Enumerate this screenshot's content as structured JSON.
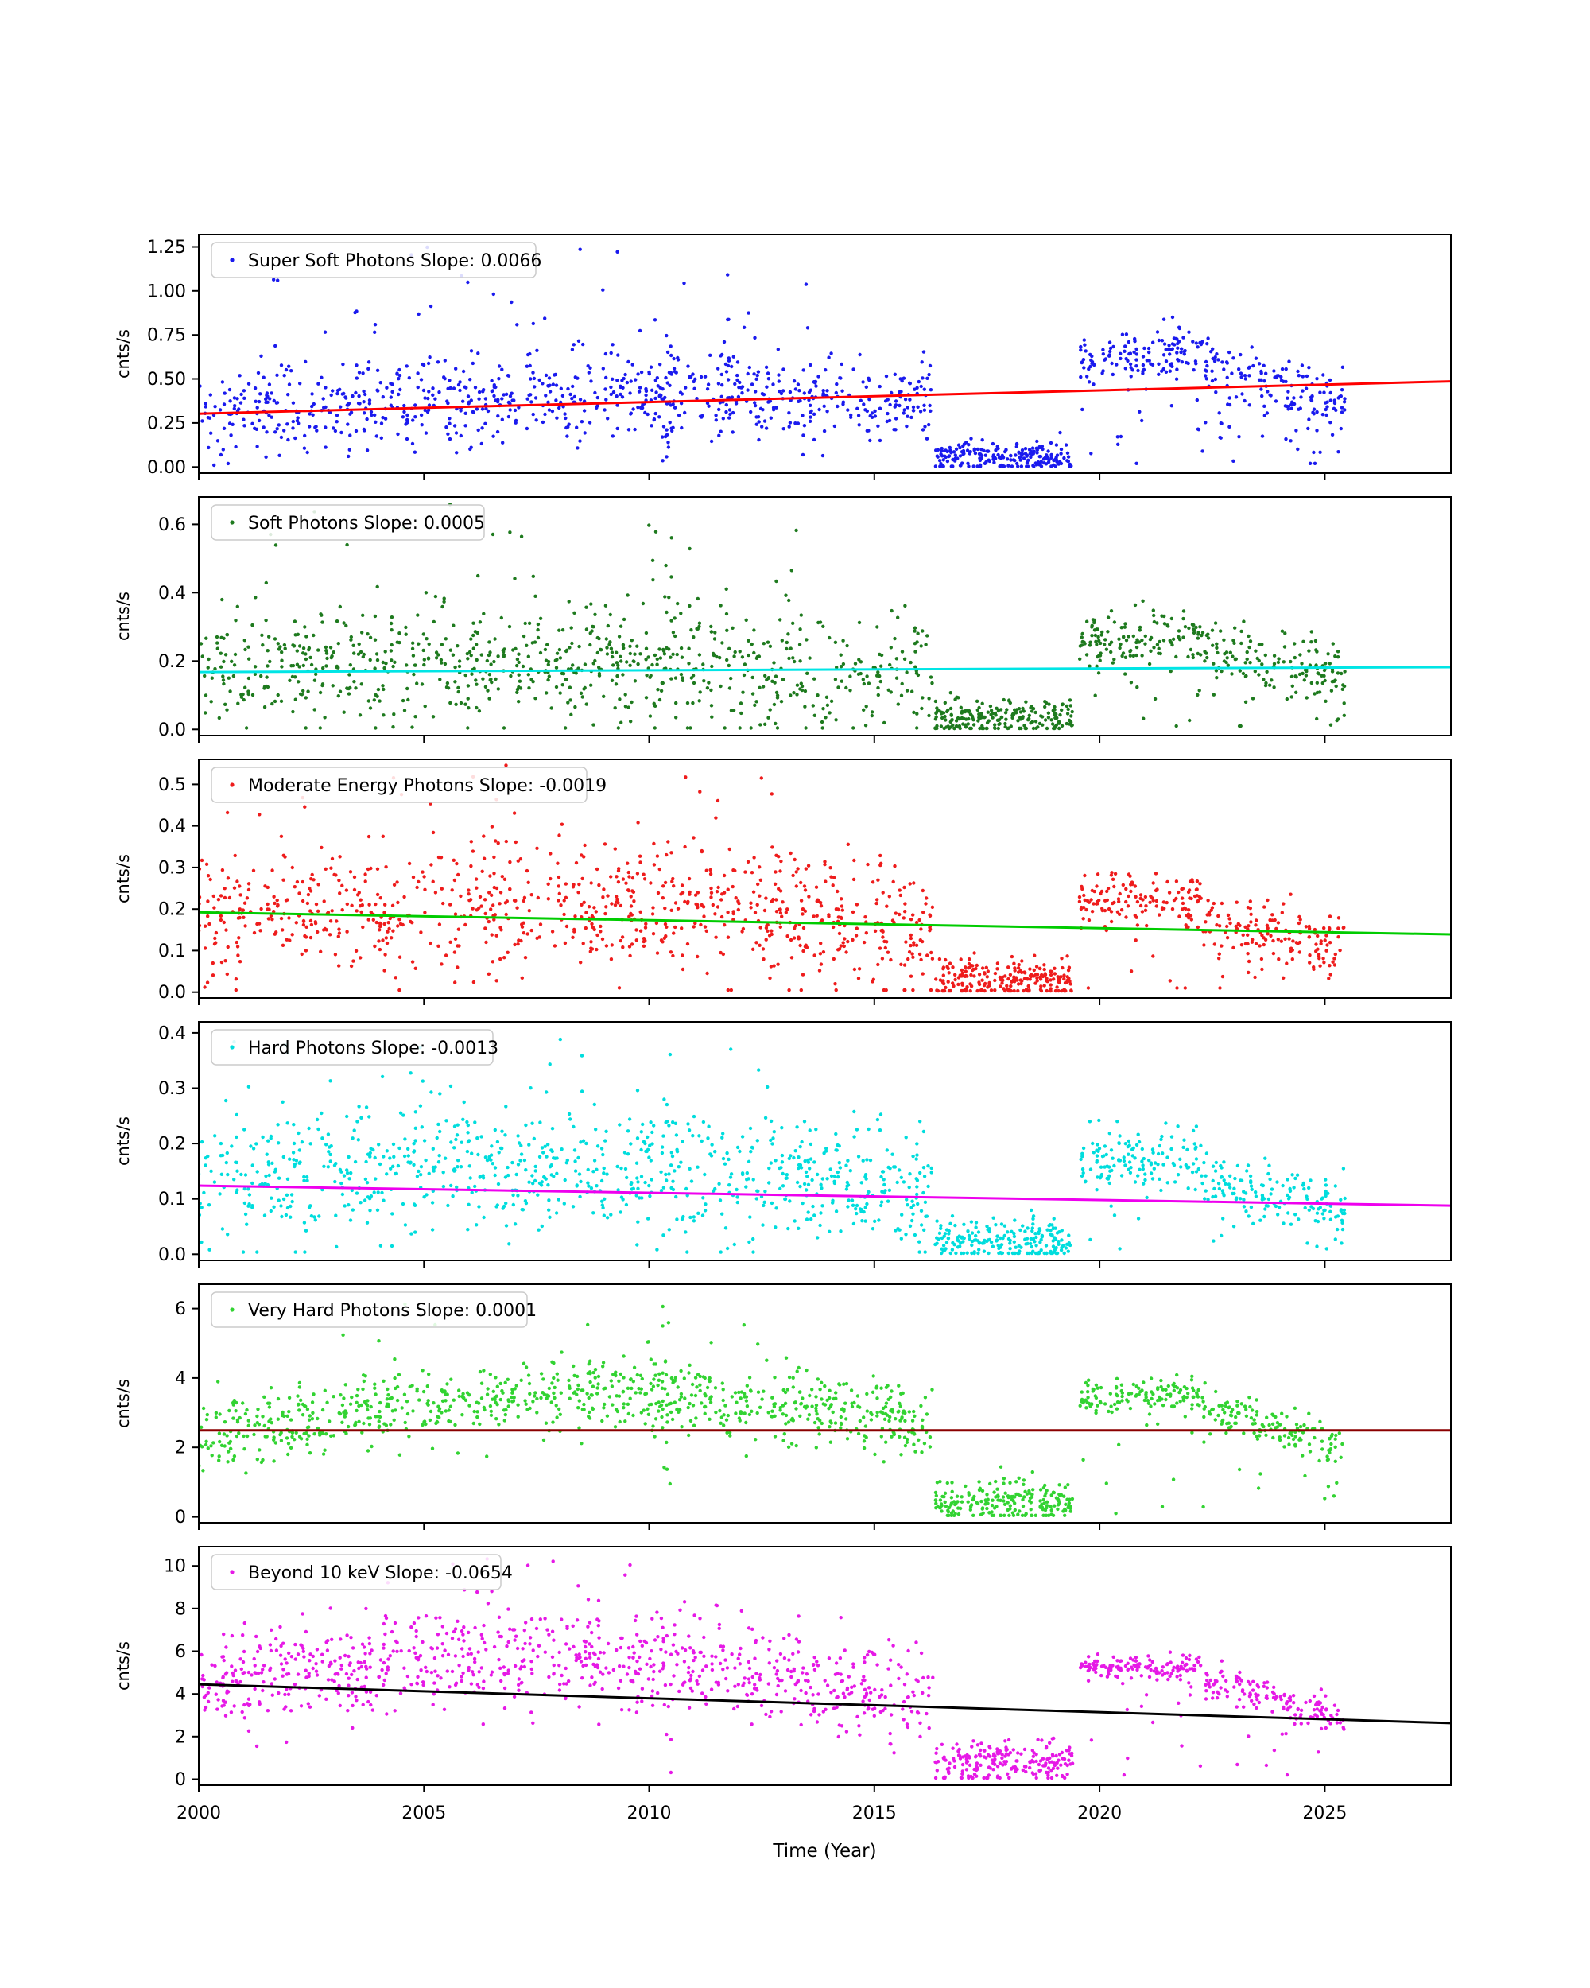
{
  "figure": {
    "background": "#ffffff",
    "xlabel": "Time (Year)",
    "ylabel": "cnts/s"
  },
  "chart_data": {
    "type": "scatter",
    "title": "",
    "xlabel": "Time (Year)",
    "ylabel": "cnts/s",
    "x_range": [
      2000,
      2027.8
    ],
    "x_ticks": [
      {
        "v": 2000,
        "label": "2000"
      },
      {
        "v": 2005,
        "label": "2005"
      },
      {
        "v": 2010,
        "label": "2010"
      },
      {
        "v": 2015,
        "label": "2015"
      },
      {
        "v": 2020,
        "label": "2020"
      },
      {
        "v": 2025,
        "label": "2025"
      }
    ],
    "panels": [
      {
        "name": "super-soft-photons",
        "legend_label": "Super Soft Photons Slope: 0.0066",
        "slope": 0.0066,
        "dot_color": "#1a1aee",
        "line_color": "#ff0000",
        "ylim": [
          -0.035,
          1.32
        ],
        "yticks": [
          {
            "v": 0.0,
            "label": "0.00"
          },
          {
            "v": 0.25,
            "label": "0.25"
          },
          {
            "v": 0.5,
            "label": "0.50"
          },
          {
            "v": 0.75,
            "label": "0.75"
          },
          {
            "v": 1.0,
            "label": "1.00"
          },
          {
            "v": 1.25,
            "label": "1.25"
          }
        ],
        "trend": {
          "x0": 2000,
          "y0": 0.303,
          "x1": 2027.8,
          "y1": 0.486
        },
        "seed": 101,
        "segments": [
          {
            "x0": 2000,
            "x1": 2016.3,
            "n": 800,
            "m0": 0.3,
            "m1": 0.38,
            "amp": 0.07,
            "sd": 0.13,
            "lo": 0.01,
            "hi": 1.28
          },
          {
            "x0": 2000.5,
            "x1": 2014,
            "n": 26,
            "uniform": true,
            "lo": 0.68,
            "hi": 1.26
          },
          {
            "x0": 2010.3,
            "x1": 2010.5,
            "n": 16,
            "uniform": true,
            "lo": 0.02,
            "hi": 0.9
          },
          {
            "x0": 2011.7,
            "x1": 2011.9,
            "n": 12,
            "uniform": true,
            "lo": 0.05,
            "hi": 1.25
          },
          {
            "x0": 2016.35,
            "x1": 2019.4,
            "n": 210,
            "m0": 0.05,
            "m1": 0.05,
            "amp": 0,
            "sd": 0.045,
            "lo": 0.004,
            "hi": 0.32
          },
          {
            "x0": 2019.55,
            "x1": 2022.3,
            "n": 130,
            "m0": 0.62,
            "m1": 0.66,
            "amp": 0,
            "sd": 0.07,
            "lo": 0.32,
            "hi": 0.92
          },
          {
            "x0": 2022.3,
            "x1": 2025.45,
            "n": 140,
            "m0": 0.56,
            "m1": 0.36,
            "amp": 0,
            "sd": 0.09,
            "lo": 0.12,
            "hi": 1.0
          },
          {
            "x0": 2019.6,
            "x1": 2025.4,
            "n": 40,
            "m0": 0.22,
            "m1": 0.22,
            "amp": 0,
            "sd": 0.16,
            "lo": 0.02,
            "hi": 1.22
          }
        ]
      },
      {
        "name": "soft-photons",
        "legend_label": "Soft Photons Slope: 0.0005",
        "slope": 0.0005,
        "dot_color": "#1e7a1e",
        "line_color": "#00e5e5",
        "ylim": [
          -0.018,
          0.68
        ],
        "yticks": [
          {
            "v": 0.0,
            "label": "0.0"
          },
          {
            "v": 0.2,
            "label": "0.2"
          },
          {
            "v": 0.4,
            "label": "0.4"
          },
          {
            "v": 0.6,
            "label": "0.6"
          }
        ],
        "trend": {
          "x0": 2000,
          "y0": 0.168,
          "x1": 2027.8,
          "y1": 0.182
        },
        "seed": 202,
        "segments": [
          {
            "x0": 2000,
            "x1": 2016.3,
            "n": 800,
            "m0": 0.17,
            "m1": 0.17,
            "amp": 0.03,
            "sd": 0.09,
            "lo": 0.004,
            "hi": 0.66
          },
          {
            "x0": 2001,
            "x1": 2013.5,
            "n": 18,
            "uniform": true,
            "lo": 0.42,
            "hi": 0.66
          },
          {
            "x0": 2010.3,
            "x1": 2010.5,
            "n": 10,
            "uniform": true,
            "lo": 0.02,
            "hi": 0.5
          },
          {
            "x0": 2016.35,
            "x1": 2019.4,
            "n": 210,
            "m0": 0.03,
            "m1": 0.03,
            "amp": 0,
            "sd": 0.027,
            "lo": 0.003,
            "hi": 0.16
          },
          {
            "x0": 2019.55,
            "x1": 2022.3,
            "n": 130,
            "m0": 0.26,
            "m1": 0.28,
            "amp": 0,
            "sd": 0.04,
            "lo": 0.12,
            "hi": 0.46
          },
          {
            "x0": 2022.3,
            "x1": 2025.45,
            "n": 140,
            "m0": 0.24,
            "m1": 0.15,
            "amp": 0,
            "sd": 0.05,
            "lo": 0.03,
            "hi": 0.44
          },
          {
            "x0": 2019.6,
            "x1": 2025.4,
            "n": 30,
            "m0": 0.1,
            "m1": 0.1,
            "amp": 0,
            "sd": 0.09,
            "lo": 0.01,
            "hi": 0.44
          }
        ]
      },
      {
        "name": "moderate-energy-photons",
        "legend_label": "Moderate Energy Photons Slope: -0.0019",
        "slope": -0.0019,
        "dot_color": "#ee1c1c",
        "line_color": "#00cc00",
        "ylim": [
          -0.014,
          0.56
        ],
        "yticks": [
          {
            "v": 0.0,
            "label": "0.0"
          },
          {
            "v": 0.1,
            "label": "0.1"
          },
          {
            "v": 0.2,
            "label": "0.2"
          },
          {
            "v": 0.3,
            "label": "0.3"
          },
          {
            "v": 0.4,
            "label": "0.4"
          },
          {
            "v": 0.5,
            "label": "0.5"
          }
        ],
        "trend": {
          "x0": 2000,
          "y0": 0.192,
          "x1": 2027.8,
          "y1": 0.139
        },
        "seed": 303,
        "segments": [
          {
            "x0": 2000,
            "x1": 2016.3,
            "n": 850,
            "m0": 0.18,
            "m1": 0.15,
            "amp": 0.05,
            "sd": 0.08,
            "lo": 0.005,
            "hi": 0.55
          },
          {
            "x0": 2000.3,
            "x1": 2016,
            "n": 14,
            "uniform": true,
            "lo": 0.4,
            "hi": 0.55
          },
          {
            "x0": 2010.3,
            "x1": 2010.5,
            "n": 8,
            "uniform": true,
            "lo": 0.02,
            "hi": 0.45
          },
          {
            "x0": 2016.35,
            "x1": 2019.4,
            "n": 220,
            "m0": 0.03,
            "m1": 0.03,
            "amp": 0,
            "sd": 0.025,
            "lo": 0.003,
            "hi": 0.14
          },
          {
            "x0": 2019.55,
            "x1": 2022.3,
            "n": 130,
            "m0": 0.22,
            "m1": 0.22,
            "amp": 0,
            "sd": 0.035,
            "lo": 0.1,
            "hi": 0.33
          },
          {
            "x0": 2022.3,
            "x1": 2025.45,
            "n": 140,
            "m0": 0.18,
            "m1": 0.1,
            "amp": 0,
            "sd": 0.035,
            "lo": 0.03,
            "hi": 0.3
          },
          {
            "x0": 2019.6,
            "x1": 2025.4,
            "n": 30,
            "m0": 0.1,
            "m1": 0.1,
            "amp": 0,
            "sd": 0.08,
            "lo": 0.01,
            "hi": 0.5
          }
        ]
      },
      {
        "name": "hard-photons",
        "legend_label": "Hard Photons Slope: -0.0013",
        "slope": -0.0013,
        "dot_color": "#00dddd",
        "line_color": "#ee00ee",
        "ylim": [
          -0.011,
          0.42
        ],
        "yticks": [
          {
            "v": 0.0,
            "label": "0.0"
          },
          {
            "v": 0.1,
            "label": "0.1"
          },
          {
            "v": 0.2,
            "label": "0.2"
          },
          {
            "v": 0.3,
            "label": "0.3"
          },
          {
            "v": 0.4,
            "label": "0.4"
          }
        ],
        "trend": {
          "x0": 2000,
          "y0": 0.124,
          "x1": 2027.8,
          "y1": 0.088
        },
        "seed": 404,
        "segments": [
          {
            "x0": 2000,
            "x1": 2016.3,
            "n": 850,
            "m0": 0.125,
            "m1": 0.115,
            "amp": 0.035,
            "sd": 0.06,
            "lo": 0.004,
            "hi": 0.41
          },
          {
            "x0": 2000.3,
            "x1": 2013,
            "n": 10,
            "uniform": true,
            "lo": 0.3,
            "hi": 0.41
          },
          {
            "x0": 2010.3,
            "x1": 2010.5,
            "n": 8,
            "uniform": true,
            "lo": 0.02,
            "hi": 0.38
          },
          {
            "x0": 2016.35,
            "x1": 2019.4,
            "n": 210,
            "m0": 0.02,
            "m1": 0.02,
            "amp": 0,
            "sd": 0.02,
            "lo": 0.002,
            "hi": 0.11
          },
          {
            "x0": 2019.55,
            "x1": 2022.3,
            "n": 130,
            "m0": 0.17,
            "m1": 0.17,
            "amp": 0,
            "sd": 0.028,
            "lo": 0.07,
            "hi": 0.27
          },
          {
            "x0": 2022.3,
            "x1": 2025.45,
            "n": 140,
            "m0": 0.14,
            "m1": 0.075,
            "amp": 0,
            "sd": 0.028,
            "lo": 0.02,
            "hi": 0.22
          },
          {
            "x0": 2019.6,
            "x1": 2025.4,
            "n": 25,
            "m0": 0.07,
            "m1": 0.07,
            "amp": 0,
            "sd": 0.05,
            "lo": 0.01,
            "hi": 0.3
          }
        ]
      },
      {
        "name": "very-hard-photons",
        "legend_label": "Very Hard Photons Slope: 0.0001",
        "slope": 0.0001,
        "dot_color": "#32d332",
        "line_color": "#8b0000",
        "ylim": [
          -0.17,
          6.7
        ],
        "yticks": [
          {
            "v": 0,
            "label": "0"
          },
          {
            "v": 2,
            "label": "2"
          },
          {
            "v": 4,
            "label": "4"
          },
          {
            "v": 6,
            "label": "6"
          }
        ],
        "trend": {
          "x0": 2000,
          "y0": 2.49,
          "x1": 2027.8,
          "y1": 2.493
        },
        "seed": 505,
        "segments": [
          {
            "x0": 2000,
            "x1": 2016.3,
            "n": 850,
            "m0": 2.25,
            "m1": 2.55,
            "amp": 1.15,
            "sd": 0.55,
            "lo": 0.1,
            "hi": 6.45
          },
          {
            "x0": 2002.5,
            "x1": 2012.5,
            "n": 8,
            "uniform": true,
            "lo": 4.9,
            "hi": 6.4
          },
          {
            "x0": 2010.3,
            "x1": 2010.5,
            "n": 10,
            "uniform": true,
            "lo": 0.2,
            "hi": 6.3
          },
          {
            "x0": 2016.35,
            "x1": 2019.4,
            "n": 210,
            "m0": 0.45,
            "m1": 0.45,
            "amp": 0,
            "sd": 0.3,
            "lo": 0.04,
            "hi": 1.7
          },
          {
            "x0": 2019.55,
            "x1": 2022.3,
            "n": 130,
            "m0": 3.45,
            "m1": 3.5,
            "amp": 0,
            "sd": 0.22,
            "lo": 2.6,
            "hi": 4.2
          },
          {
            "x0": 2022.3,
            "x1": 2025.45,
            "n": 140,
            "m0": 3.2,
            "m1": 1.95,
            "amp": 0,
            "sd": 0.28,
            "lo": 1.3,
            "hi": 4.0
          },
          {
            "x0": 2019.6,
            "x1": 2025.4,
            "n": 25,
            "m0": 1.6,
            "m1": 1.6,
            "amp": 0,
            "sd": 1.0,
            "lo": 0.1,
            "hi": 4.6
          }
        ]
      },
      {
        "name": "beyond-10-kev",
        "legend_label": "Beyond 10 keV Slope: -0.0654",
        "slope": -0.0654,
        "dot_color": "#e619e6",
        "line_color": "#000000",
        "ylim": [
          -0.28,
          10.9
        ],
        "yticks": [
          {
            "v": 0,
            "label": "0"
          },
          {
            "v": 2,
            "label": "2"
          },
          {
            "v": 4,
            "label": "4"
          },
          {
            "v": 6,
            "label": "6"
          },
          {
            "v": 8,
            "label": "8"
          },
          {
            "v": 10,
            "label": "10"
          }
        ],
        "trend": {
          "x0": 2000,
          "y0": 4.45,
          "x1": 2027.8,
          "y1": 2.632
        },
        "seed": 606,
        "segments": [
          {
            "x0": 2000,
            "x1": 2016.3,
            "n": 850,
            "m0": 4.4,
            "m1": 3.8,
            "amp": 1.6,
            "sd": 1.15,
            "lo": 0.1,
            "hi": 10.6
          },
          {
            "x0": 2005,
            "x1": 2011,
            "n": 10,
            "uniform": true,
            "lo": 8.2,
            "hi": 10.5
          },
          {
            "x0": 2010.3,
            "x1": 2010.5,
            "n": 10,
            "uniform": true,
            "lo": 0.3,
            "hi": 8.5
          },
          {
            "x0": 2016.35,
            "x1": 2019.4,
            "n": 210,
            "m0": 0.8,
            "m1": 0.8,
            "amp": 0,
            "sd": 0.5,
            "lo": 0.06,
            "hi": 2.6
          },
          {
            "x0": 2019.55,
            "x1": 2022.3,
            "n": 130,
            "m0": 5.2,
            "m1": 5.3,
            "amp": 0,
            "sd": 0.3,
            "lo": 4.2,
            "hi": 6.2
          },
          {
            "x0": 2022.3,
            "x1": 2025.45,
            "n": 140,
            "m0": 4.8,
            "m1": 2.8,
            "amp": 0,
            "sd": 0.45,
            "lo": 2.2,
            "hi": 6.0
          },
          {
            "x0": 2019.6,
            "x1": 2025.4,
            "n": 25,
            "m0": 2.4,
            "m1": 2.4,
            "amp": 0,
            "sd": 1.5,
            "lo": 0.2,
            "hi": 7.0
          }
        ]
      }
    ]
  }
}
